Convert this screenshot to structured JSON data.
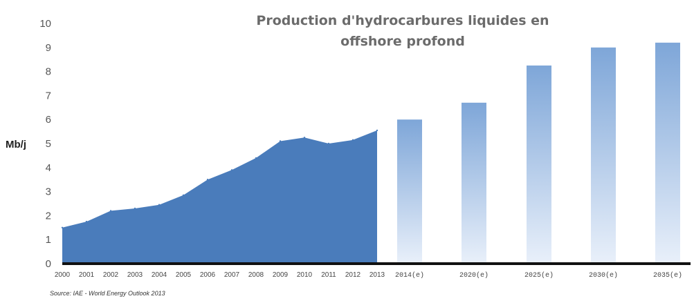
{
  "chart_data": {
    "type": "area",
    "title_lines": [
      "Production d'hydrocarbures liquides en",
      "offshore profond"
    ],
    "ylabel": "Mb/j",
    "xlabel": "",
    "ylim": [
      0,
      10
    ],
    "yticks": [
      "0",
      "1",
      "2",
      "3",
      "4",
      "5",
      "6",
      "7",
      "8",
      "9",
      "10"
    ],
    "grid": false,
    "historical": {
      "type": "area",
      "categories": [
        "2000",
        "2001",
        "2002",
        "2003",
        "2004",
        "2005",
        "2006",
        "2007",
        "2008",
        "2009",
        "2010",
        "2011",
        "2012",
        "2013"
      ],
      "values": [
        1.5,
        1.75,
        2.2,
        2.3,
        2.45,
        2.85,
        3.5,
        3.9,
        4.4,
        5.1,
        5.25,
        5.0,
        5.15,
        5.55
      ],
      "color": "#4a7cbb"
    },
    "projections": {
      "type": "bar",
      "categories": [
        "2014(e)",
        "2020(e)",
        "2025(e)",
        "2030(e)",
        "2035(e)"
      ],
      "values": [
        6.0,
        6.7,
        8.25,
        9.0,
        9.2
      ],
      "color_top": "#7ea6d8",
      "color_bottom": "#e9f0fa"
    },
    "source": "Source: IAE - World Energy Outlook 2013"
  }
}
